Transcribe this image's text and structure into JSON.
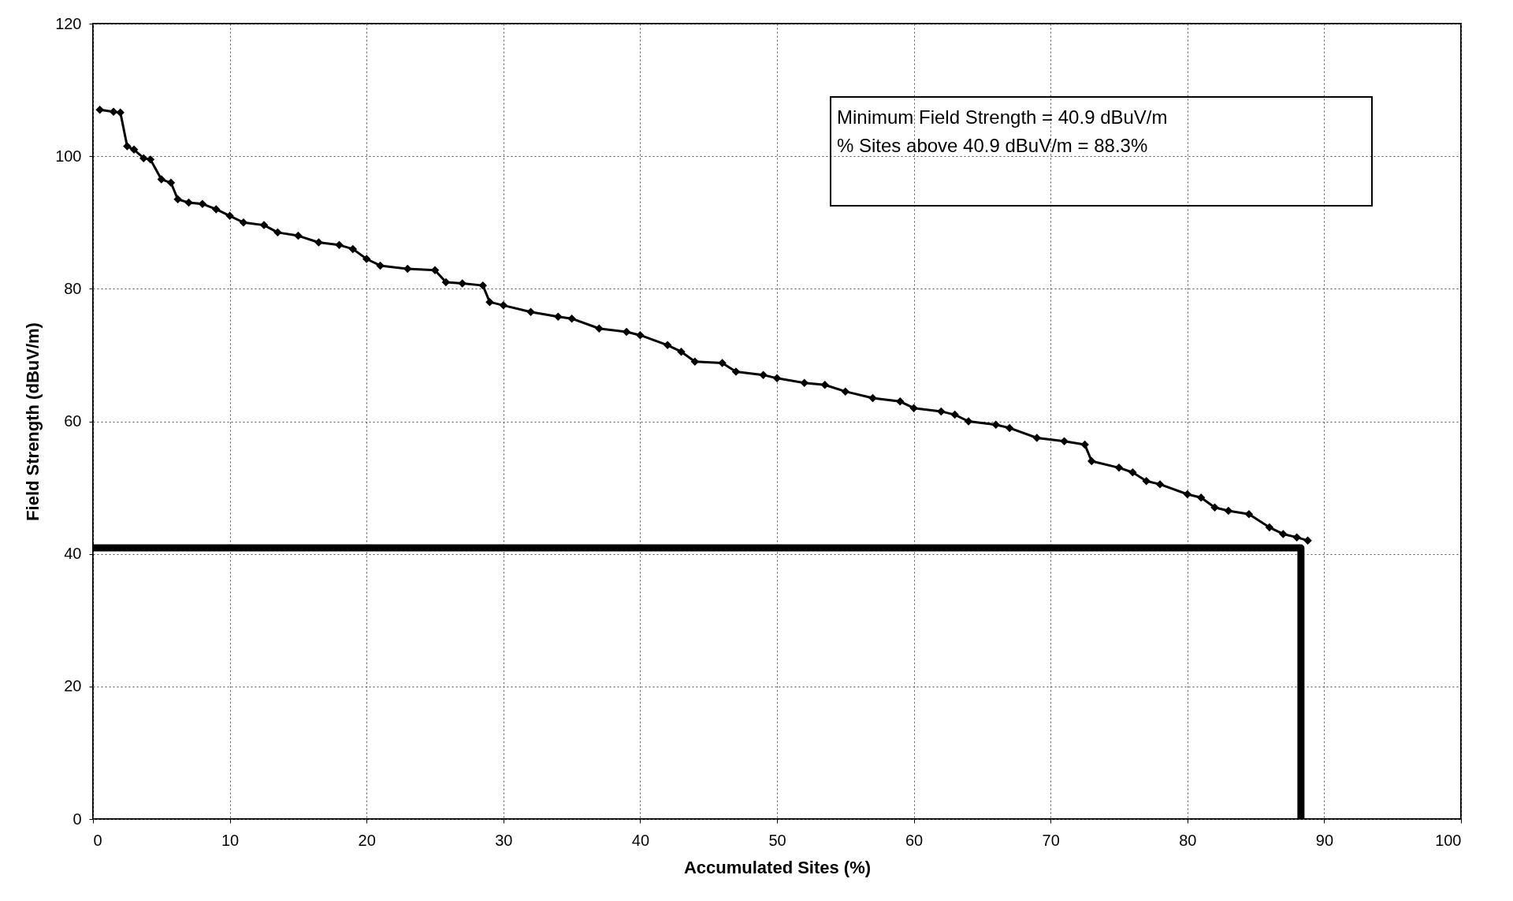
{
  "chart_data": {
    "type": "line",
    "xlabel": "Accumulated Sites  (%)",
    "ylabel": "Field Strength  (dBuV/m)",
    "xlim": [
      0,
      100
    ],
    "xticks": [
      0,
      10,
      20,
      30,
      40,
      50,
      60,
      70,
      80,
      90,
      100
    ],
    "ylim": [
      0,
      120
    ],
    "yticks": [
      0,
      20,
      40,
      60,
      80,
      100,
      120
    ],
    "grid": true,
    "annotations": [
      "Minimum Field Strength = 40.9 dBuV/m",
      "% Sites above 40.9 dBuV/m = 88.3%"
    ],
    "series": [
      {
        "color": "#000000",
        "marker": "diamond",
        "line_style": "solid",
        "x": [
          0.5,
          1.5,
          2,
          2.5,
          3,
          3.7,
          4.2,
          5,
          5.7,
          6.2,
          7,
          8,
          9,
          10,
          11,
          12.5,
          13.5,
          15,
          16.5,
          18,
          19,
          20,
          21,
          23,
          25,
          25.8,
          27,
          28.5,
          29,
          30,
          32,
          34,
          35,
          37,
          39,
          40,
          42,
          43,
          44,
          46,
          47,
          49,
          50,
          52,
          53.5,
          55,
          57,
          59,
          60,
          62,
          63,
          64,
          66,
          67,
          69,
          71,
          72.5,
          73,
          75,
          76,
          77,
          78,
          80,
          81,
          82,
          83,
          84.5,
          86,
          87,
          88,
          88.8
        ],
        "values": [
          107,
          106.7,
          106.6,
          101.5,
          101,
          99.7,
          99.5,
          96.5,
          96,
          93.5,
          93,
          92.8,
          92,
          91,
          90,
          89.6,
          88.5,
          88,
          87,
          86.6,
          86,
          84.5,
          83.5,
          83,
          82.8,
          81,
          80.8,
          80.5,
          78,
          77.5,
          76.5,
          75.8,
          75.5,
          74,
          73.5,
          73,
          71.5,
          70.5,
          69,
          68.8,
          67.5,
          67,
          66.5,
          65.8,
          65.5,
          64.5,
          63.5,
          63,
          62,
          61.5,
          61,
          60,
          59.5,
          59,
          57.5,
          57,
          56.5,
          54,
          53,
          52.3,
          51,
          50.5,
          49,
          48.5,
          47,
          46.5,
          46,
          44,
          43,
          42.5,
          42
        ]
      },
      {
        "color": "#000000",
        "marker": "none",
        "line_style": "solid",
        "x": [
          0,
          88.3,
          88.3
        ],
        "values": [
          40.9,
          40.9,
          0
        ]
      }
    ]
  }
}
